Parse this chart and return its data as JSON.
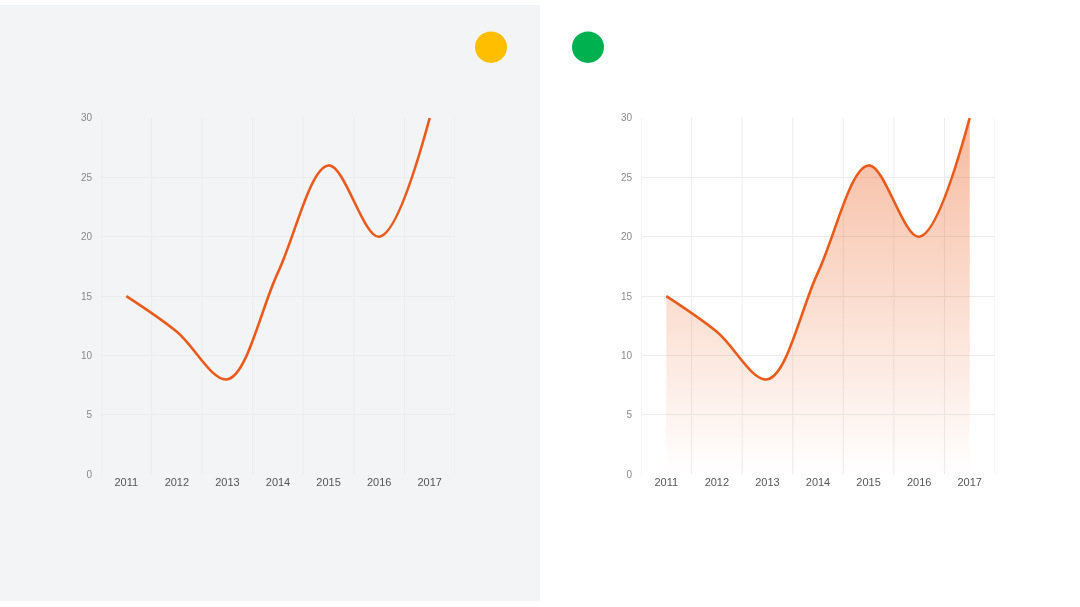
{
  "chart_data": [
    {
      "type": "line",
      "categories": [
        "2011",
        "2012",
        "2013",
        "2014",
        "2015",
        "2016",
        "2017"
      ],
      "series": [
        {
          "color": "#ea5b1b",
          "values": [
            15,
            12,
            8,
            17,
            26,
            20,
            30
          ]
        }
      ],
      "ylim": [
        0,
        30
      ],
      "yticks": [
        0,
        5,
        10,
        15,
        20,
        25,
        30
      ],
      "grid": true
    },
    {
      "type": "area",
      "categories": [
        "2011",
        "2012",
        "2013",
        "2014",
        "2015",
        "2016",
        "2017"
      ],
      "series": [
        {
          "color": "#ea5b1b",
          "values": [
            15,
            12,
            8,
            17,
            26,
            20,
            30
          ]
        }
      ],
      "ylim": [
        0,
        30
      ],
      "yticks": [
        0,
        5,
        10,
        15,
        20,
        25,
        30
      ],
      "grid": true
    }
  ]
}
